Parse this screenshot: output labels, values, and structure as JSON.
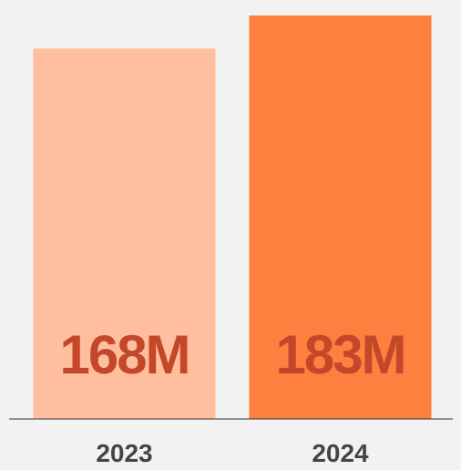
{
  "chart_data": {
    "type": "bar",
    "categories": [
      "2023",
      "2024"
    ],
    "values": [
      168,
      183
    ],
    "value_labels": [
      "168M",
      "183M"
    ],
    "colors": [
      "#ffbf9f",
      "#ff7f3f"
    ]
  }
}
